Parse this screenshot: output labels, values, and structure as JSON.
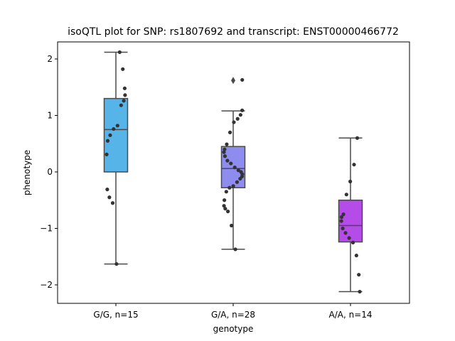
{
  "chart_data": {
    "type": "box",
    "title": "isoQTL plot for SNP: rs1807692 and transcript: ENST00000466772",
    "xlabel": "genotype",
    "ylabel": "phenotype",
    "ylim": [
      -2.3,
      2.3
    ],
    "yticks": [
      2,
      1,
      0,
      -1,
      -2
    ],
    "ytick_labels": [
      "2",
      "1",
      "0",
      "−1",
      "−2"
    ],
    "categories": [
      "G/G, n=15",
      "G/A, n=28",
      "A/A, n=14"
    ],
    "colors": [
      "#56b4e9",
      "#8f8cf0",
      "#b54be8"
    ],
    "boxes": [
      {
        "q1": 0.0,
        "median": 0.75,
        "q3": 1.3,
        "whisker_low": -1.63,
        "whisker_high": 2.12,
        "outliers": []
      },
      {
        "q1": -0.28,
        "median": 0.06,
        "q3": 0.45,
        "whisker_low": -1.37,
        "whisker_high": 1.08,
        "outliers": [
          1.62
        ]
      },
      {
        "q1": -1.24,
        "median": -0.95,
        "q3": -0.5,
        "whisker_low": -2.12,
        "whisker_high": 0.6,
        "outliers": []
      }
    ],
    "points": [
      [
        2.12,
        1.82,
        1.48,
        1.36,
        1.26,
        1.18,
        0.82,
        0.76,
        0.65,
        0.55,
        0.31,
        -0.31,
        -0.45,
        -0.55,
        -1.63
      ],
      [
        1.63,
        1.09,
        1.01,
        0.94,
        0.88,
        0.7,
        0.49,
        0.4,
        0.35,
        0.28,
        0.2,
        0.15,
        0.08,
        0.03,
        0.0,
        -0.04,
        -0.08,
        -0.12,
        -0.18,
        -0.25,
        -0.28,
        -0.35,
        -0.5,
        -0.6,
        -0.65,
        -0.7,
        -0.95,
        -1.37
      ],
      [
        0.6,
        0.13,
        -0.17,
        -0.4,
        -0.75,
        -0.8,
        -0.87,
        -1.0,
        -1.08,
        -1.17,
        -1.25,
        -1.48,
        -1.82,
        -2.12
      ]
    ]
  }
}
